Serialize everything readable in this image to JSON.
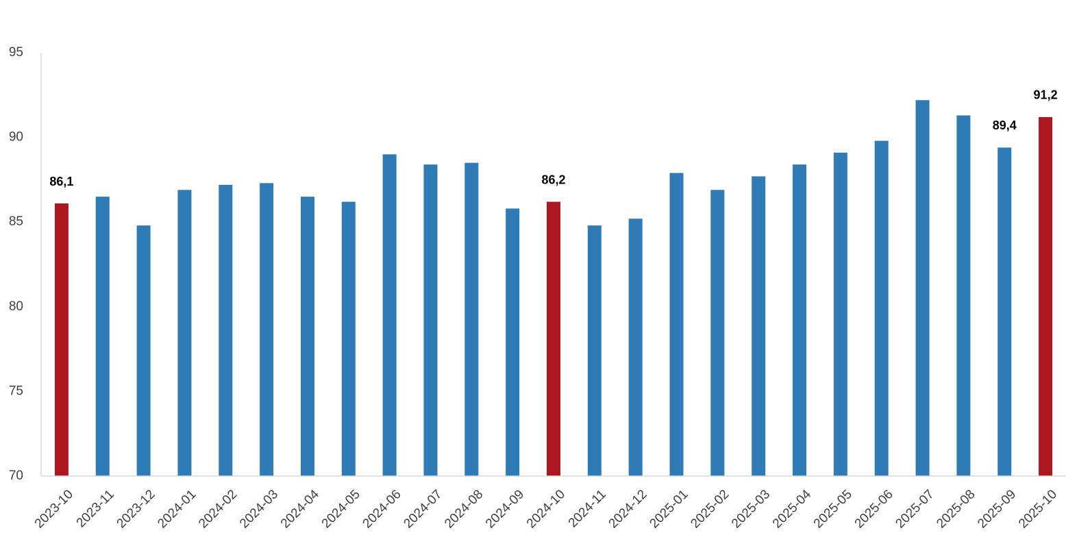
{
  "chart_data": {
    "type": "bar",
    "categories": [
      "2023-10",
      "2023-11",
      "2023-12",
      "2024-01",
      "2024-02",
      "2024-03",
      "2024-04",
      "2024-05",
      "2024-06",
      "2024-07",
      "2024-08",
      "2024-09",
      "2024-10",
      "2024-11",
      "2024-12",
      "2025-01",
      "2025-02",
      "2025-03",
      "2025-04",
      "2025-05",
      "2025-06",
      "2025-07",
      "2025-08",
      "2025-09",
      "2025-10"
    ],
    "values": [
      86.1,
      86.5,
      84.8,
      86.9,
      87.2,
      87.3,
      86.5,
      86.2,
      89.0,
      88.4,
      88.5,
      85.8,
      86.2,
      84.8,
      85.2,
      87.9,
      86.9,
      87.7,
      88.4,
      89.1,
      89.8,
      92.2,
      91.3,
      89.4,
      91.2
    ],
    "value_labels": [
      "86,1",
      null,
      null,
      null,
      null,
      null,
      null,
      null,
      null,
      null,
      null,
      null,
      "86,2",
      null,
      null,
      null,
      null,
      null,
      null,
      null,
      null,
      null,
      null,
      "89,4",
      "91,2"
    ],
    "colors": [
      "#ac1820",
      "#2e7bb6",
      "#2e7bb6",
      "#2e7bb6",
      "#2e7bb6",
      "#2e7bb6",
      "#2e7bb6",
      "#2e7bb6",
      "#2e7bb6",
      "#2e7bb6",
      "#2e7bb6",
      "#2e7bb6",
      "#ac1820",
      "#2e7bb6",
      "#2e7bb6",
      "#2e7bb6",
      "#2e7bb6",
      "#2e7bb6",
      "#2e7bb6",
      "#2e7bb6",
      "#2e7bb6",
      "#2e7bb6",
      "#2e7bb6",
      "#2e7bb6",
      "#ac1820"
    ],
    "ylim": [
      70,
      95
    ],
    "yticks": [
      70,
      75,
      80,
      85,
      90,
      95
    ],
    "grid": false
  }
}
